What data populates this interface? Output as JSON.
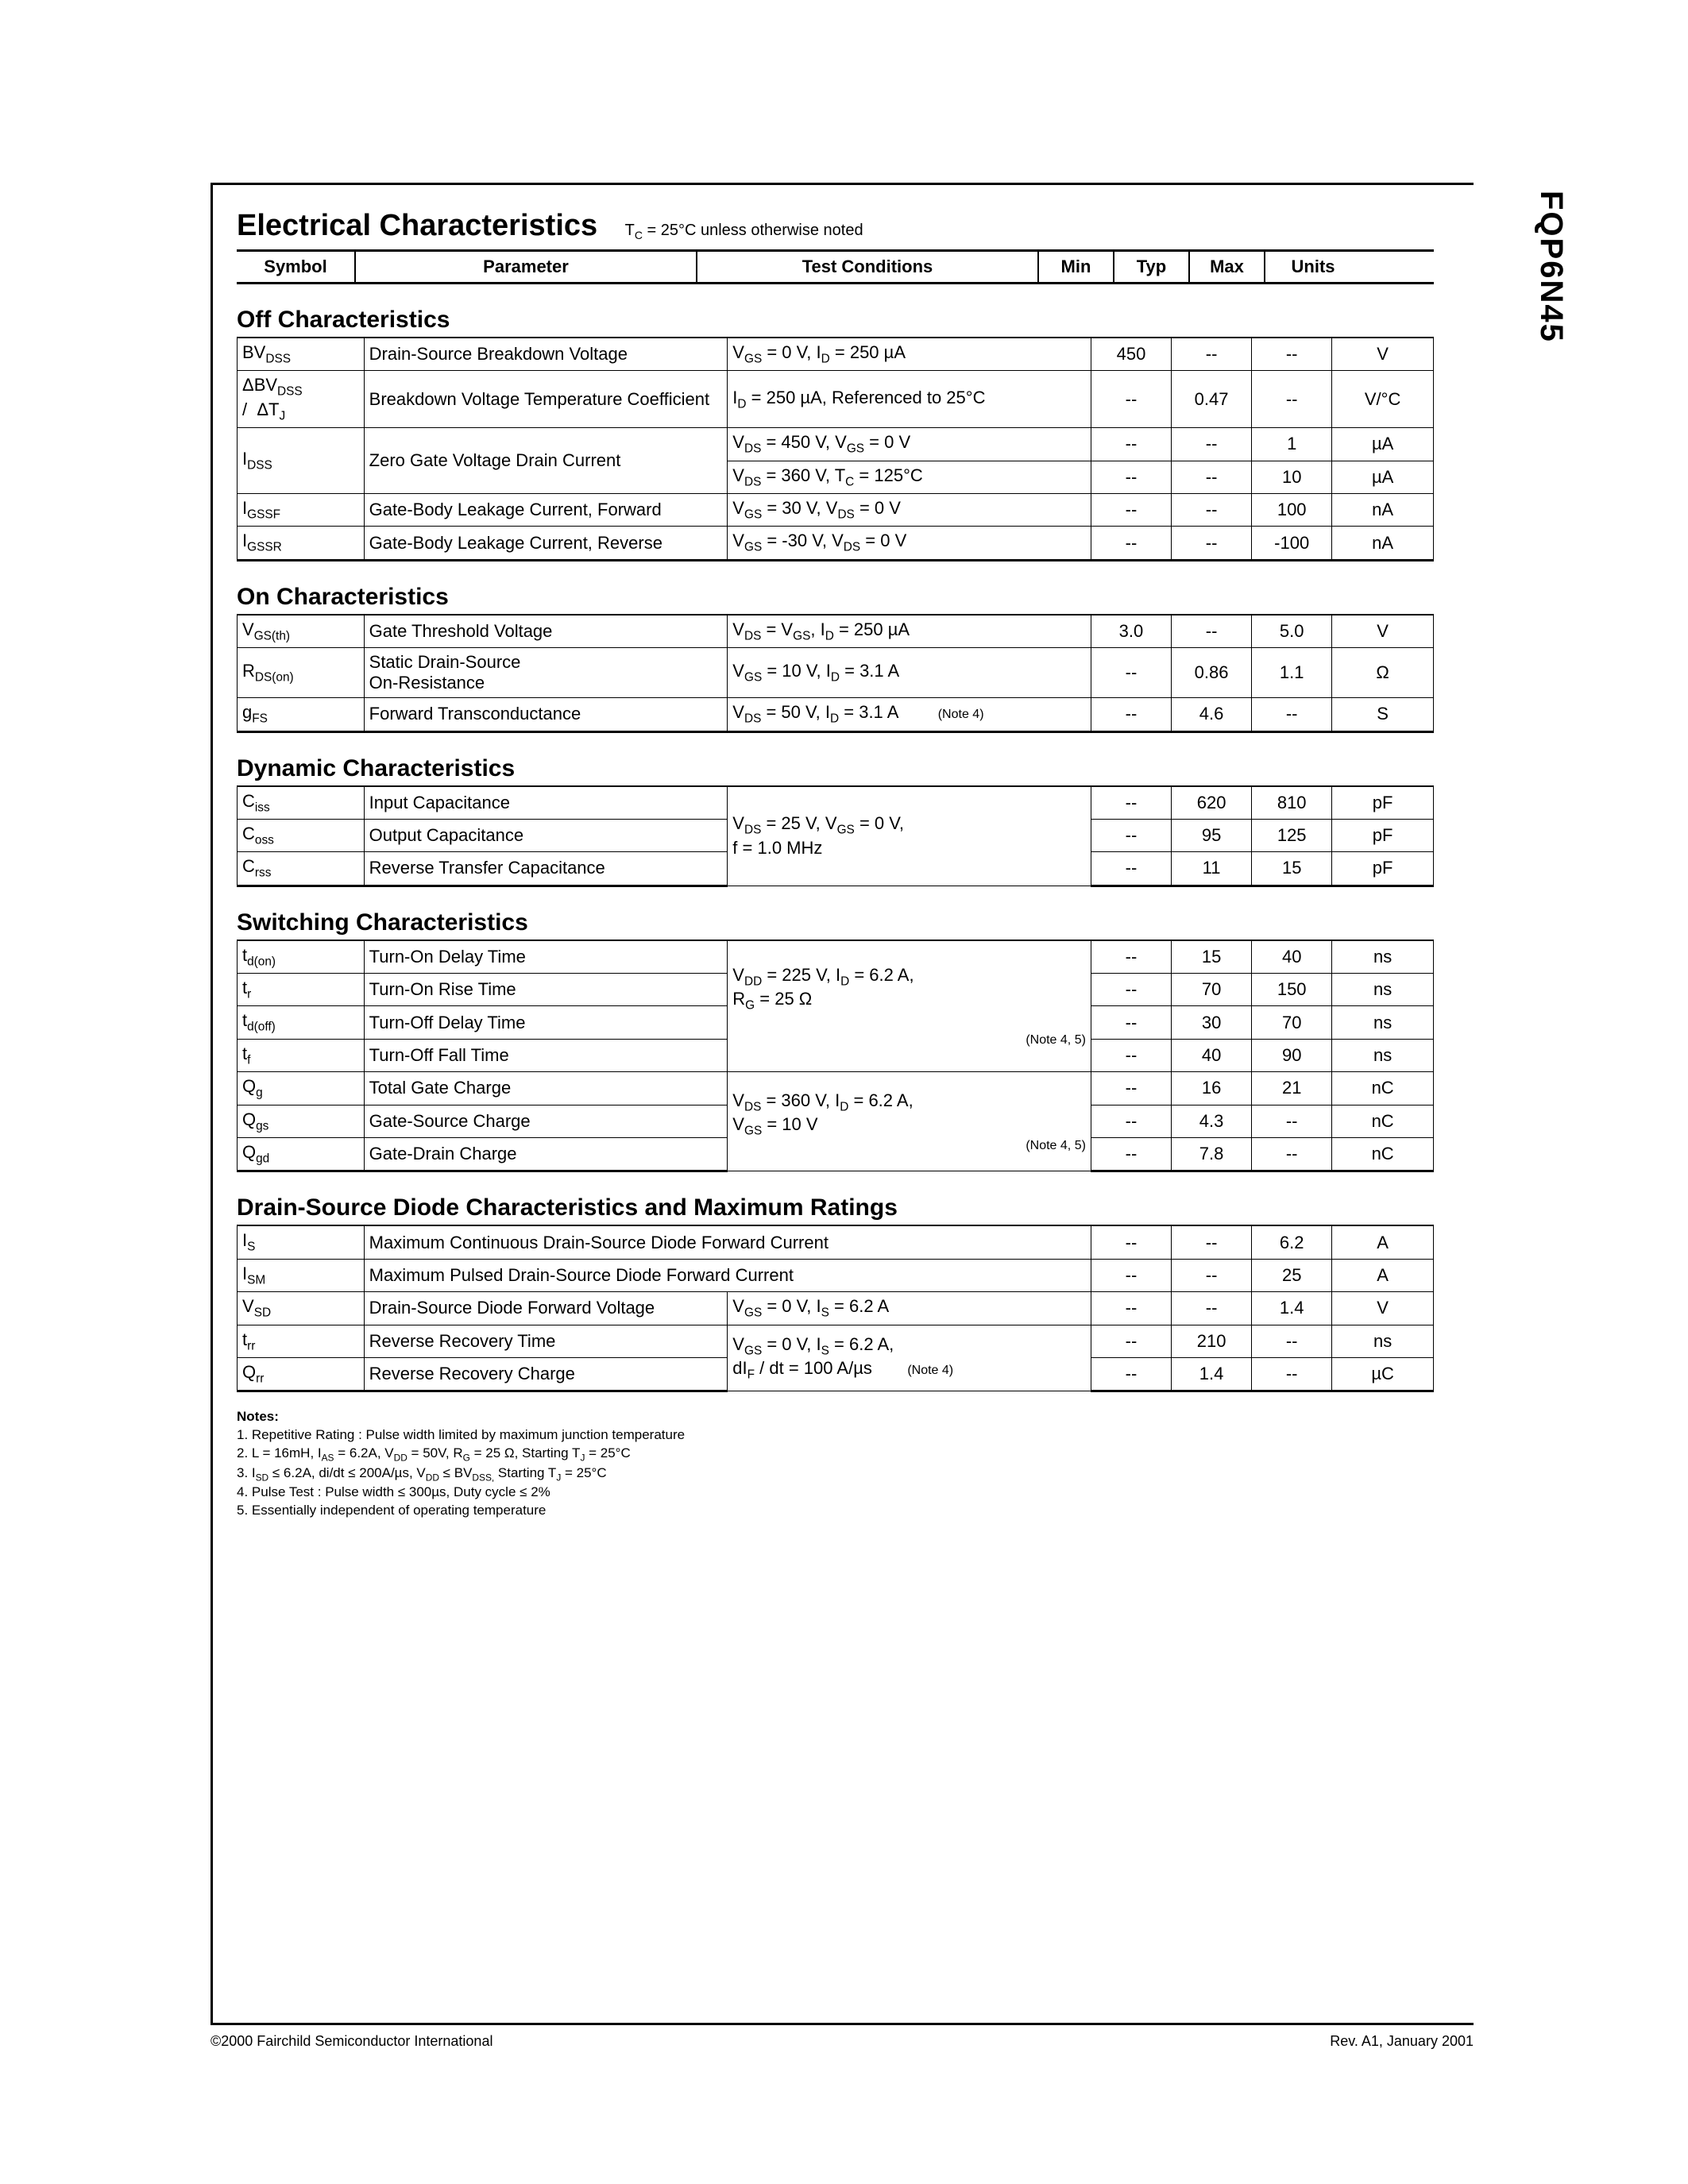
{
  "part_number": "FQP6N45",
  "page_title": "Electrical Characteristics",
  "title_condition": "T_C = 25°C unless otherwise noted",
  "footer_left": "©2000 Fairchild Semiconductor International",
  "footer_right": "Rev. A1, January 2001",
  "headers": {
    "symbol": "Symbol",
    "parameter": "Parameter",
    "conditions": "Test Conditions",
    "min": "Min",
    "typ": "Typ",
    "max": "Max",
    "units": "Units"
  },
  "sections": {
    "off": {
      "title": "Off Characteristics",
      "rows": [
        {
          "sym": "BV<sub>DSS</sub>",
          "param": "Drain-Source Breakdown Voltage",
          "cond": "V<sub>GS</sub> = 0 V, I<sub>D</sub> = 250 µA",
          "min": "450",
          "typ": "--",
          "max": "--",
          "units": "V"
        },
        {
          "sym": "ΔBV<sub>DSS</sub><br>/ &nbsp;ΔT<sub>J</sub>",
          "param": "Breakdown Voltage Temperature Coefficient",
          "cond": "I<sub>D</sub> = 250 µA, Referenced to 25°C",
          "min": "--",
          "typ": "0.47",
          "max": "--",
          "units": "V/°C"
        },
        {
          "sym": "I<sub>DSS</sub>",
          "param": "Zero Gate Voltage Drain Current",
          "rowspan": 2,
          "cond": "V<sub>DS</sub> = 450 V, V<sub>GS</sub> = 0 V",
          "min": "--",
          "typ": "--",
          "max": "1",
          "units": "µA"
        },
        {
          "cond": "V<sub>DS</sub> = 360 V, T<sub>C</sub> = 125°C",
          "min": "--",
          "typ": "--",
          "max": "10",
          "units": "µA"
        },
        {
          "sym": "I<sub>GSSF</sub>",
          "param": "Gate-Body Leakage Current, Forward",
          "cond": "V<sub>GS</sub> = 30 V, V<sub>DS</sub> = 0 V",
          "min": "--",
          "typ": "--",
          "max": "100",
          "units": "nA"
        },
        {
          "sym": "I<sub>GSSR</sub>",
          "param": "Gate-Body Leakage Current, Reverse",
          "cond": "V<sub>GS</sub> = -30 V, V<sub>DS</sub> = 0 V",
          "min": "--",
          "typ": "--",
          "max": "-100",
          "units": "nA"
        }
      ]
    },
    "on": {
      "title": "On Characteristics",
      "rows": [
        {
          "sym": "V<sub>GS(th)</sub>",
          "param": "Gate Threshold Voltage",
          "cond": "V<sub>DS</sub> = V<sub>GS</sub>, I<sub>D</sub> = 250 µA",
          "min": "3.0",
          "typ": "--",
          "max": "5.0",
          "units": "V"
        },
        {
          "sym": "R<sub>DS(on)</sub>",
          "param": "Static Drain-Source<br>On-Resistance",
          "cond": "V<sub>GS</sub> = 10 V, I<sub>D</sub> = 3.1 A",
          "min": "--",
          "typ": "0.86",
          "max": "1.1",
          "units": "Ω"
        },
        {
          "sym": "g<sub>FS</sub>",
          "param": "Forward Transconductance",
          "cond": "V<sub>DS</sub> = 50 V, I<sub>D</sub> = 3.1 A &nbsp;&nbsp;&nbsp;&nbsp;<span class='note-ref'>(Note 4)</span>",
          "min": "--",
          "typ": "4.6",
          "max": "--",
          "units": "S"
        }
      ]
    },
    "dyn": {
      "title": "Dynamic Characteristics",
      "rows": [
        {
          "sym": "C<sub>iss</sub>",
          "param": "Input Capacitance",
          "cond": "V<sub>DS</sub> = 25 V, V<sub>GS</sub> = 0 V,<br>f = 1.0 MHz",
          "condrowspan": 3,
          "min": "--",
          "typ": "620",
          "max": "810",
          "units": "pF"
        },
        {
          "sym": "C<sub>oss</sub>",
          "param": "Output Capacitance",
          "min": "--",
          "typ": "95",
          "max": "125",
          "units": "pF"
        },
        {
          "sym": "C<sub>rss</sub>",
          "param": "Reverse Transfer Capacitance",
          "min": "--",
          "typ": "11",
          "max": "15",
          "units": "pF"
        }
      ]
    },
    "sw": {
      "title": "Switching Characteristics",
      "rows": [
        {
          "sym": "t<sub>d(on)</sub>",
          "param": "Turn-On Delay Time",
          "cond": "V<sub>DD</sub> = 225 V, I<sub>D</sub> = 6.2 A,<br>R<sub>G</sub> = 25 Ω<br><br><span style='float:right' class='note-ref'>(Note 4, 5)</span>",
          "condrowspan": 4,
          "min": "--",
          "typ": "15",
          "max": "40",
          "units": "ns"
        },
        {
          "sym": "t<sub>r</sub>",
          "param": "Turn-On Rise Time",
          "min": "--",
          "typ": "70",
          "max": "150",
          "units": "ns"
        },
        {
          "sym": "t<sub>d(off)</sub>",
          "param": "Turn-Off Delay Time",
          "min": "--",
          "typ": "30",
          "max": "70",
          "units": "ns"
        },
        {
          "sym": "t<sub>f</sub>",
          "param": "Turn-Off Fall Time",
          "min": "--",
          "typ": "40",
          "max": "90",
          "units": "ns"
        },
        {
          "sym": "Q<sub>g</sub>",
          "param": "Total Gate Charge",
          "cond": "V<sub>DS</sub> = 360 V, I<sub>D</sub> = 6.2 A,<br>V<sub>GS</sub> = 10 V<br><span style='float:right' class='note-ref'>(Note 4, 5)</span>",
          "condrowspan": 3,
          "min": "--",
          "typ": "16",
          "max": "21",
          "units": "nC"
        },
        {
          "sym": "Q<sub>gs</sub>",
          "param": "Gate-Source Charge",
          "min": "--",
          "typ": "4.3",
          "max": "--",
          "units": "nC"
        },
        {
          "sym": "Q<sub>gd</sub>",
          "param": "Gate-Drain Charge",
          "min": "--",
          "typ": "7.8",
          "max": "--",
          "units": "nC"
        }
      ]
    },
    "diode": {
      "title": "Drain-Source Diode Characteristics and Maximum Ratings",
      "rows": [
        {
          "sym": "I<sub>S</sub>",
          "paramcond": "Maximum Continuous Drain-Source Diode Forward Current",
          "min": "--",
          "typ": "--",
          "max": "6.2",
          "units": "A"
        },
        {
          "sym": "I<sub>SM</sub>",
          "paramcond": "Maximum Pulsed Drain-Source Diode Forward Current",
          "min": "--",
          "typ": "--",
          "max": "25",
          "units": "A"
        },
        {
          "sym": "V<sub>SD</sub>",
          "param": "Drain-Source Diode Forward Voltage",
          "cond": "V<sub>GS</sub> = 0 V, I<sub>S</sub> = 6.2 A",
          "min": "--",
          "typ": "--",
          "max": "1.4",
          "units": "V"
        },
        {
          "sym": "t<sub>rr</sub>",
          "param": "Reverse Recovery Time",
          "cond": "V<sub>GS</sub> = 0 V, I<sub>S</sub> = 6.2 A,<br>dI<sub>F</sub> / dt = 100 A/µs &nbsp;&nbsp;&nbsp;<span class='note-ref'>(Note 4)</span>",
          "condrowspan": 2,
          "min": "--",
          "typ": "210",
          "max": "--",
          "units": "ns"
        },
        {
          "sym": "Q<sub>rr</sub>",
          "param": "Reverse Recovery Charge",
          "min": "--",
          "typ": "1.4",
          "max": "--",
          "units": "µC"
        }
      ]
    }
  },
  "notes_title": "Notes:",
  "notes": [
    "1. Repetitive Rating : Pulse width limited by maximum junction temperature",
    "2. L = 16mH, I<sub>AS</sub> = 6.2A, V<sub>DD</sub> = 50V, R<sub>G</sub> = 25 Ω, Starting  T<sub>J</sub> = 25°C",
    "3. I<sub>SD</sub> ≤ 6.2A, di/dt ≤ 200A/µs, V<sub>DD</sub> ≤ BV<sub>DSS,</sub> Starting  T<sub>J</sub> = 25°C",
    "4. Pulse Test : Pulse width ≤ 300µs, Duty cycle ≤ 2%",
    "5. Essentially independent of operating temperature"
  ]
}
